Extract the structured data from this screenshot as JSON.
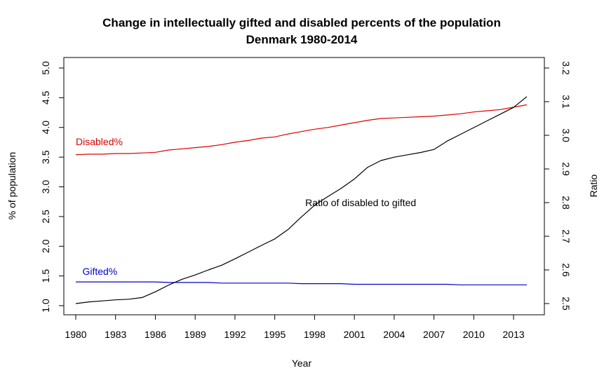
{
  "chart_data": {
    "type": "line",
    "title": "Change in intellectually gifted and disabled percents of the population",
    "subtitle": "Denmark 1980-2014",
    "xlabel": "Year",
    "ylabel": "% of population",
    "ylabel_right": "Ratio",
    "xlim": [
      1980,
      2014
    ],
    "ylim": [
      1.0,
      5.0
    ],
    "ylim_right": [
      2.5,
      3.2
    ],
    "x_ticks": [
      1980,
      1983,
      1986,
      1989,
      1992,
      1995,
      1998,
      2001,
      2004,
      2007,
      2010,
      2013
    ],
    "y_ticks": [
      "1.0",
      "1.5",
      "2.0",
      "2.5",
      "3.0",
      "3.5",
      "4.0",
      "4.5",
      "5.0"
    ],
    "y_ticks_right": [
      "2.5",
      "2.6",
      "2.7",
      "2.8",
      "2.9",
      "3.0",
      "3.1",
      "3.2"
    ],
    "x": [
      1980,
      1981,
      1982,
      1983,
      1984,
      1985,
      1986,
      1987,
      1988,
      1989,
      1990,
      1991,
      1992,
      1993,
      1994,
      1995,
      1996,
      1997,
      1998,
      1999,
      2000,
      2001,
      2002,
      2003,
      2004,
      2005,
      2006,
      2007,
      2008,
      2009,
      2010,
      2011,
      2012,
      2013,
      2014
    ],
    "series": [
      {
        "name": "Disabled%",
        "axis": "left",
        "color": "#dd0000",
        "values": [
          3.54,
          3.55,
          3.55,
          3.56,
          3.56,
          3.57,
          3.58,
          3.62,
          3.64,
          3.66,
          3.68,
          3.71,
          3.75,
          3.78,
          3.82,
          3.84,
          3.89,
          3.93,
          3.97,
          4.0,
          4.04,
          4.08,
          4.12,
          4.15,
          4.16,
          4.17,
          4.18,
          4.19,
          4.21,
          4.23,
          4.26,
          4.28,
          4.3,
          4.34,
          4.38
        ]
      },
      {
        "name": "Gifted%",
        "axis": "left",
        "color": "#0000cc",
        "values": [
          1.4,
          1.4,
          1.4,
          1.4,
          1.4,
          1.4,
          1.4,
          1.39,
          1.39,
          1.39,
          1.39,
          1.38,
          1.38,
          1.38,
          1.38,
          1.38,
          1.38,
          1.37,
          1.37,
          1.37,
          1.37,
          1.36,
          1.36,
          1.36,
          1.36,
          1.36,
          1.36,
          1.36,
          1.36,
          1.35,
          1.35,
          1.35,
          1.35,
          1.35,
          1.35
        ]
      },
      {
        "name": "Ratio of disabled to gifted",
        "axis": "right",
        "color": "#000000",
        "values": [
          2.5,
          2.505,
          2.508,
          2.511,
          2.513,
          2.518,
          2.535,
          2.555,
          2.572,
          2.585,
          2.6,
          2.614,
          2.633,
          2.653,
          2.673,
          2.692,
          2.72,
          2.757,
          2.792,
          2.818,
          2.842,
          2.87,
          2.905,
          2.925,
          2.935,
          2.942,
          2.949,
          2.958,
          2.983,
          3.003,
          3.023,
          3.043,
          3.063,
          3.083,
          3.115
        ]
      }
    ],
    "annotations": [
      {
        "text": "Disabled%",
        "color": "#dd0000",
        "x": 1980,
        "y": 3.7,
        "axis": "left"
      },
      {
        "text": "Gifted%",
        "color": "#0000cc",
        "x": 1980.5,
        "y": 1.52,
        "axis": "left"
      },
      {
        "text": "Ratio of disabled to gifted",
        "color": "#000000",
        "x": 1997.3,
        "y": 2.79,
        "axis": "right"
      }
    ]
  }
}
